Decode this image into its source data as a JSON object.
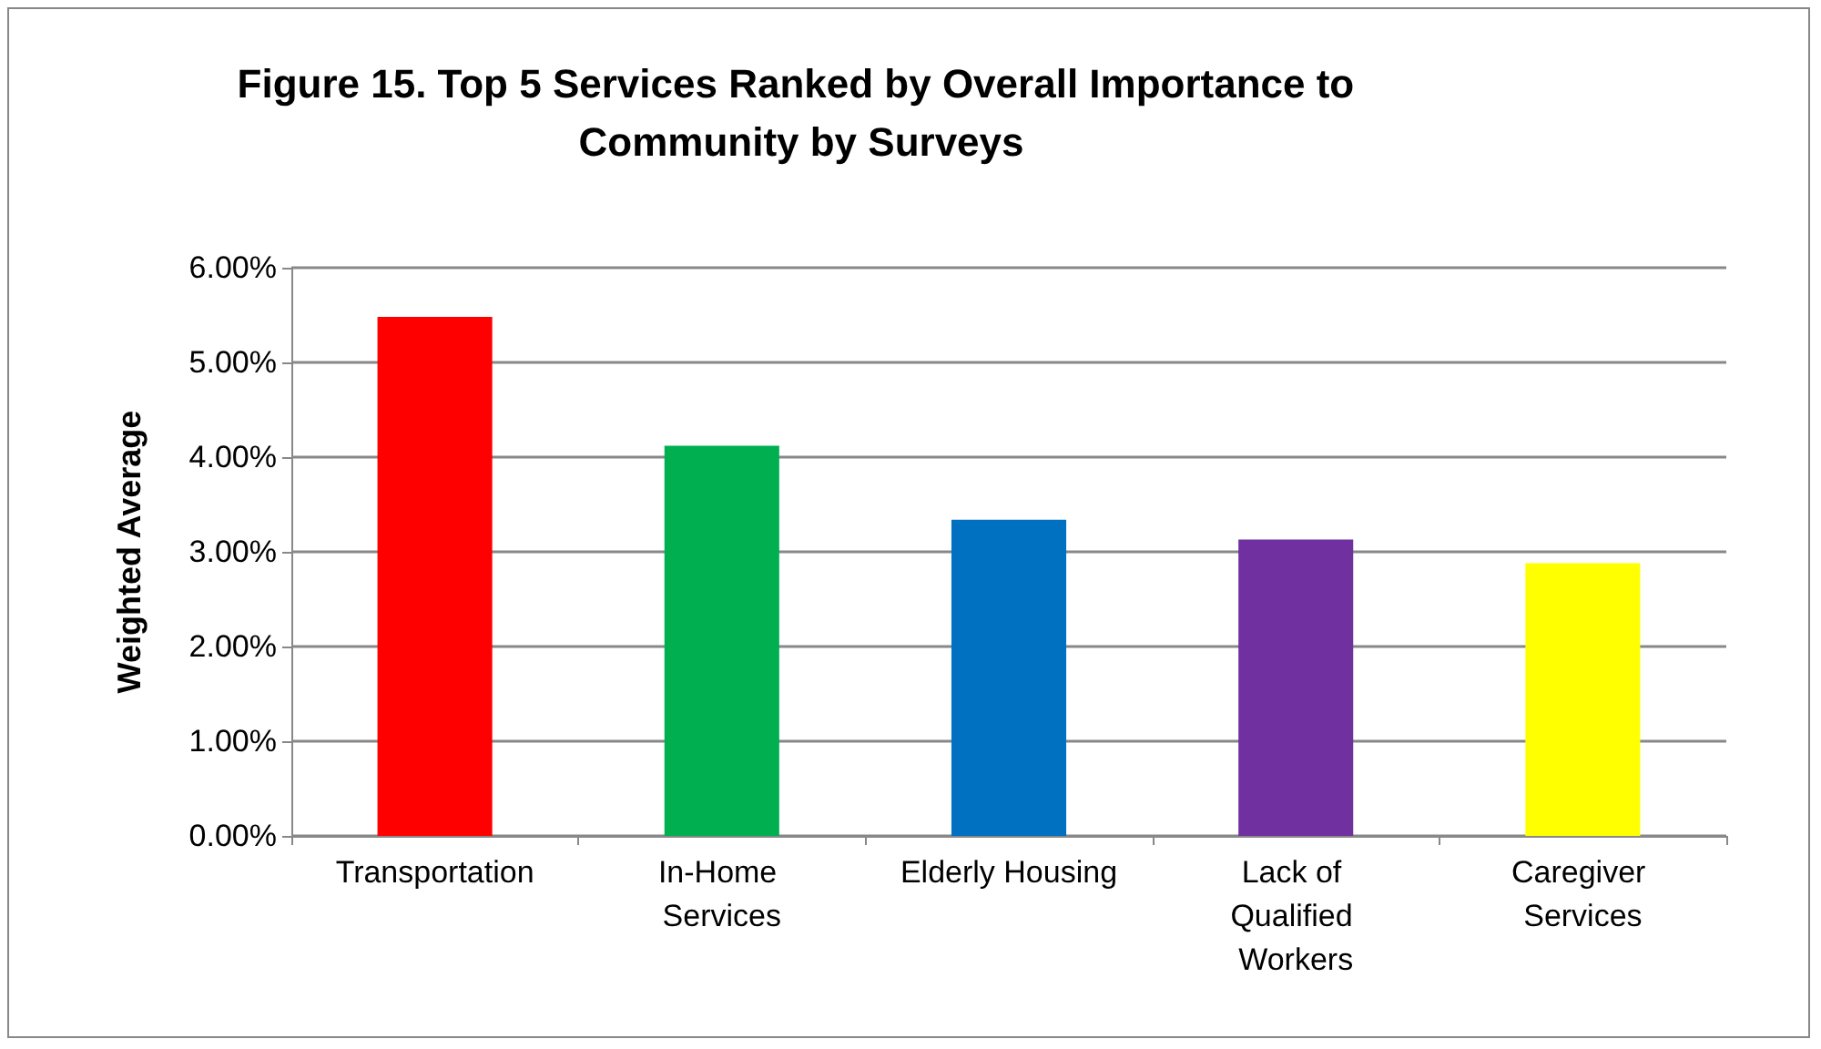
{
  "chart_data": {
    "type": "bar",
    "title": "Figure 15. Top 5 Services Ranked by Overall Importance to Community by Surveys",
    "ylabel": "Weighted Average",
    "categories": [
      "Transportation",
      "In-Home Services",
      "Elderly Housing",
      "Lack of Qualified Workers",
      "Caregiver Services"
    ],
    "values": [
      5.48,
      4.12,
      3.34,
      3.13,
      2.88
    ],
    "colors": [
      "#ff0000",
      "#00b050",
      "#0070c0",
      "#7030a0",
      "#ffff00"
    ],
    "ylim": [
      0,
      6
    ],
    "yticks": [
      {
        "value": 0,
        "label": "0.00%"
      },
      {
        "value": 1,
        "label": "1.00%"
      },
      {
        "value": 2,
        "label": "2.00%"
      },
      {
        "value": 3,
        "label": "3.00%"
      },
      {
        "value": 4,
        "label": "4.00%"
      },
      {
        "value": 5,
        "label": "5.00%"
      },
      {
        "value": 6,
        "label": "6.00%"
      }
    ],
    "grid": "y"
  }
}
